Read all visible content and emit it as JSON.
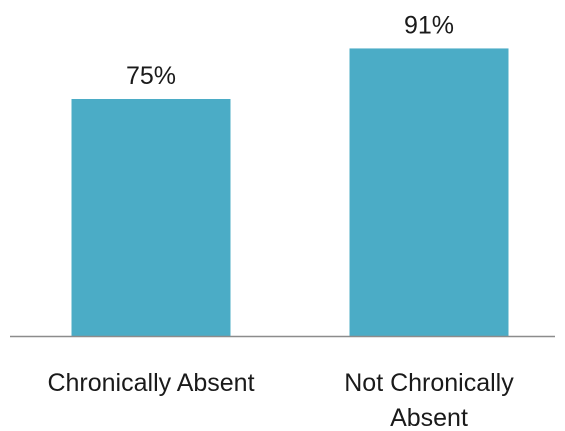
{
  "chart_data": {
    "type": "bar",
    "categories": [
      [
        "Chronically Absent"
      ],
      [
        "Not Chronically",
        "Absent"
      ]
    ],
    "values": [
      75,
      91
    ],
    "data_labels": [
      "75%",
      "91%"
    ],
    "ylim": [
      0,
      100
    ],
    "grid": false,
    "legend": "none",
    "colors": {
      "bar": "#4BACC6",
      "axis": "#8c8c8c",
      "text": "#1a1a1a"
    }
  }
}
